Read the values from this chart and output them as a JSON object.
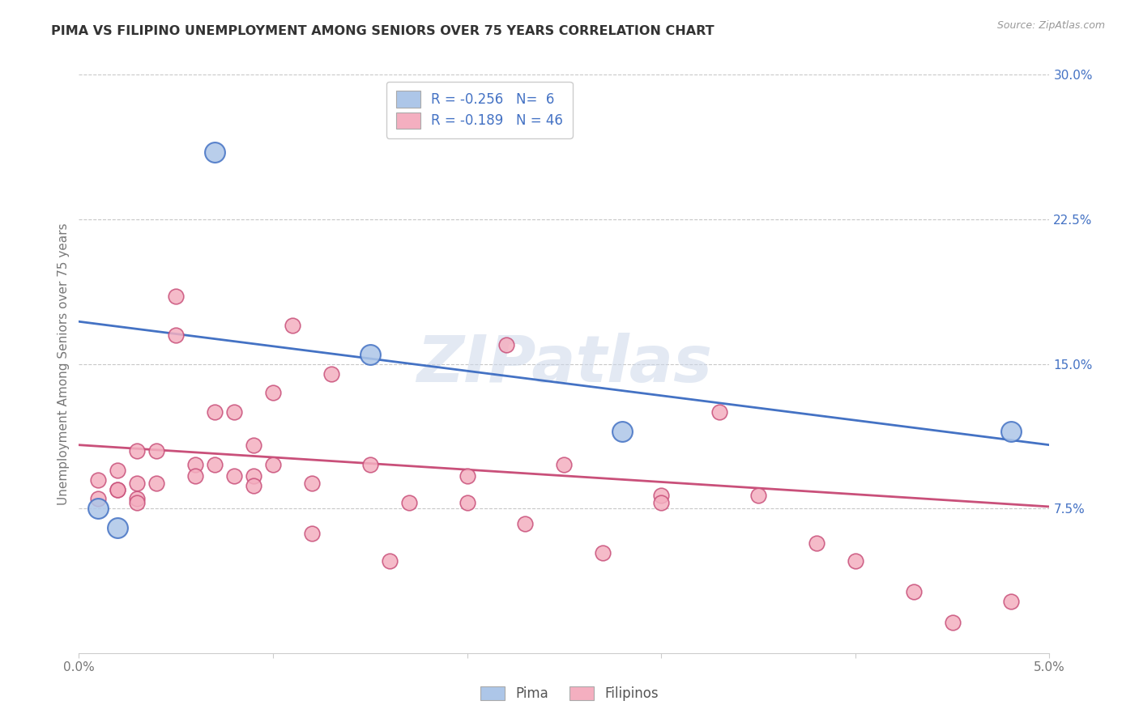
{
  "title": "PIMA VS FILIPINO UNEMPLOYMENT AMONG SENIORS OVER 75 YEARS CORRELATION CHART",
  "source": "Source: ZipAtlas.com",
  "ylabel": "Unemployment Among Seniors over 75 years",
  "xlim": [
    0.0,
    0.05
  ],
  "ylim": [
    0.0,
    0.3
  ],
  "xtick_labels": [
    "0.0%",
    "",
    "",
    "",
    "",
    "5.0%"
  ],
  "yticks_right": [
    0.075,
    0.15,
    0.225,
    0.3
  ],
  "ytick_labels_right": [
    "7.5%",
    "15.0%",
    "22.5%",
    "30.0%"
  ],
  "watermark": "ZIPatlas",
  "pima_color": "#adc6e8",
  "pima_line_color": "#4472c4",
  "filipino_color": "#f4afc0",
  "filipino_line_color": "#c9507a",
  "background_color": "#ffffff",
  "grid_color": "#c8c8c8",
  "pima_x": [
    0.001,
    0.002,
    0.007,
    0.015,
    0.028,
    0.048
  ],
  "pima_y": [
    0.075,
    0.065,
    0.26,
    0.155,
    0.115,
    0.115
  ],
  "pima_line_x0": 0.0,
  "pima_line_y0": 0.172,
  "pima_line_x1": 0.05,
  "pima_line_y1": 0.108,
  "fil_line_x0": 0.0,
  "fil_line_y0": 0.108,
  "fil_line_x1": 0.05,
  "fil_line_y1": 0.076,
  "filipino_x": [
    0.001,
    0.001,
    0.002,
    0.002,
    0.002,
    0.003,
    0.003,
    0.003,
    0.003,
    0.004,
    0.004,
    0.005,
    0.005,
    0.006,
    0.006,
    0.007,
    0.007,
    0.008,
    0.008,
    0.009,
    0.009,
    0.009,
    0.01,
    0.01,
    0.011,
    0.012,
    0.012,
    0.013,
    0.015,
    0.016,
    0.017,
    0.02,
    0.02,
    0.022,
    0.023,
    0.025,
    0.027,
    0.03,
    0.03,
    0.033,
    0.035,
    0.038,
    0.04,
    0.043,
    0.045,
    0.048
  ],
  "filipino_y": [
    0.09,
    0.08,
    0.095,
    0.085,
    0.085,
    0.105,
    0.088,
    0.08,
    0.078,
    0.105,
    0.088,
    0.185,
    0.165,
    0.098,
    0.092,
    0.125,
    0.098,
    0.125,
    0.092,
    0.108,
    0.092,
    0.087,
    0.135,
    0.098,
    0.17,
    0.088,
    0.062,
    0.145,
    0.098,
    0.048,
    0.078,
    0.092,
    0.078,
    0.16,
    0.067,
    0.098,
    0.052,
    0.082,
    0.078,
    0.125,
    0.082,
    0.057,
    0.048,
    0.032,
    0.016,
    0.027
  ]
}
